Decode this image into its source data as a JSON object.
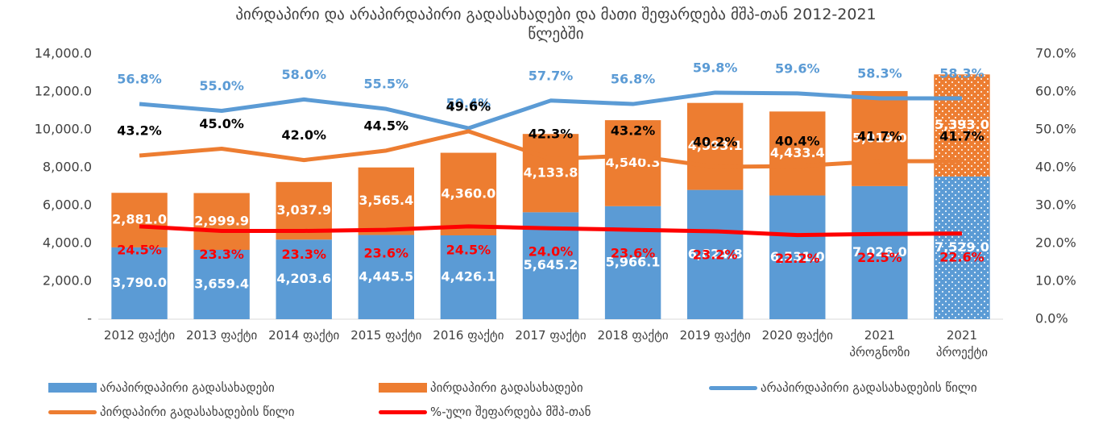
{
  "chart_data": {
    "type": "bar",
    "title": "პირდაპირი და არაპირდაპირი გადასახადები და მათი შეფარდება მშპ-თან 2012-2021 წლებში",
    "categories": [
      "2012 ფაქტი",
      "2013 ფაქტი",
      "2014 ფაქტი",
      "2015 ფაქტი",
      "2016 ფაქტი",
      "2017 ფაქტი",
      "2018 ფაქტი",
      "2019 ფაქტი",
      "2020 ფაქტი",
      "2021 პროგნოზი",
      "2021 პროექტი"
    ],
    "dotted_index": 10,
    "series": [
      {
        "name": "არაპირდაპირი გადასახადები",
        "color": "#5b9bd5",
        "kind": "bar",
        "values": [
          3790.0,
          3659.4,
          4203.6,
          4445.5,
          4426.1,
          5645.2,
          5966.1,
          6824.8,
          6531.0,
          7026.0,
          7529.0
        ],
        "value_labels": [
          "3,790.0",
          "3,659.4",
          "4,203.6",
          "4,445.5",
          "4,426.1",
          "5,645.2",
          "5,966.1",
          "6,824.8",
          "6,531.0",
          "7,026.0",
          "7,529.0"
        ]
      },
      {
        "name": "პირდაპირი გადასახადები",
        "color": "#ed7d31",
        "kind": "bar",
        "values": [
          2881.0,
          2999.9,
          3037.9,
          3565.4,
          4360.0,
          4133.8,
          4540.3,
          4593.1,
          4433.4,
          5019.0,
          5393.0
        ],
        "value_labels": [
          "2,881.0",
          "2,999.9",
          "3,037.9",
          "3,565.4",
          "4,360.0",
          "4,133.8",
          "4,540.3",
          "4,593.1",
          "4,433.4",
          "5,019.0",
          "5,393.0"
        ]
      },
      {
        "name": "არაპირდაპირი გადასახადების წილი",
        "color": "#5b9bd5",
        "label_color": "#5b9bd5",
        "kind": "line",
        "axis": "y2",
        "values": [
          56.8,
          55.0,
          58.0,
          55.5,
          50.4,
          57.7,
          56.8,
          59.8,
          59.6,
          58.3,
          58.3
        ],
        "value_labels": [
          "56.8%",
          "55.0%",
          "58.0%",
          "55.5%",
          "50.4%",
          "57.7%",
          "56.8%",
          "59.8%",
          "59.6%",
          "58.3%",
          "58.3%"
        ]
      },
      {
        "name": "პირდაპირი გადასახადების წილი",
        "color": "#ed7d31",
        "label_color": "#000000",
        "kind": "line",
        "axis": "y2",
        "values": [
          43.2,
          45.0,
          42.0,
          44.5,
          49.6,
          42.3,
          43.2,
          40.2,
          40.4,
          41.7,
          41.7
        ],
        "value_labels": [
          "43.2%",
          "45.0%",
          "42.0%",
          "44.5%",
          "49.6%",
          "42.3%",
          "43.2%",
          "40.2%",
          "40.4%",
          "41.7%",
          "41.7%"
        ]
      },
      {
        "name": "%-ული შეფარდება მშპ-თან",
        "color": "#ff0000",
        "label_color": "#ff0000",
        "kind": "line",
        "axis": "y2",
        "values": [
          24.5,
          23.3,
          23.3,
          23.6,
          24.5,
          24.0,
          23.6,
          23.2,
          22.2,
          22.5,
          22.6
        ],
        "value_labels": [
          "24.5%",
          "23.3%",
          "23.3%",
          "23.6%",
          "24.5%",
          "24.0%",
          "23.6%",
          "23.2%",
          "22.2%",
          "22.5%",
          "22.6%"
        ]
      }
    ],
    "ylim": [
      0,
      14000
    ],
    "yticks": [
      {
        "value": 0,
        "label": "-"
      },
      {
        "value": 2000,
        "label": "2,000.0"
      },
      {
        "value": 4000,
        "label": "4,000.0"
      },
      {
        "value": 6000,
        "label": "6,000.0"
      },
      {
        "value": 8000,
        "label": "8,000.0"
      },
      {
        "value": 10000,
        "label": "10,000.0"
      },
      {
        "value": 12000,
        "label": "12,000.0"
      },
      {
        "value": 14000,
        "label": "14,000.0"
      }
    ],
    "y2lim": [
      0,
      70
    ],
    "y2ticks": [
      {
        "value": 0,
        "label": "0.0%"
      },
      {
        "value": 10,
        "label": "10.0%"
      },
      {
        "value": 20,
        "label": "20.0%"
      },
      {
        "value": 30,
        "label": "30.0%"
      },
      {
        "value": 40,
        "label": "40.0%"
      },
      {
        "value": 50,
        "label": "50.0%"
      },
      {
        "value": 60,
        "label": "60.0%"
      },
      {
        "value": 70,
        "label": "70.0%"
      }
    ]
  }
}
